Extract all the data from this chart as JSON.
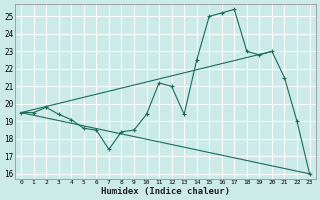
{
  "xlabel": "Humidex (Indice chaleur)",
  "bg_color": "#cceae8",
  "grid_color": "#ffffff",
  "line_color": "#1a6b5a",
  "xlim": [
    -0.5,
    23.5
  ],
  "ylim": [
    15.7,
    25.7
  ],
  "xticks": [
    0,
    1,
    2,
    3,
    4,
    5,
    6,
    7,
    8,
    9,
    10,
    11,
    12,
    13,
    14,
    15,
    16,
    17,
    18,
    19,
    20,
    21,
    22,
    23
  ],
  "yticks": [
    16,
    17,
    18,
    19,
    20,
    21,
    22,
    23,
    24,
    25
  ],
  "main_x": [
    0,
    1,
    2,
    3,
    4,
    5,
    6,
    7,
    8,
    9,
    10,
    11,
    12,
    13,
    14,
    15,
    16,
    17,
    18,
    19,
    20,
    21,
    22,
    23
  ],
  "main_y": [
    19.5,
    19.5,
    19.8,
    19.4,
    19.1,
    18.6,
    18.5,
    17.4,
    18.4,
    18.5,
    19.4,
    21.2,
    21.0,
    19.4,
    22.5,
    25.0,
    25.2,
    25.4,
    23.0,
    22.8,
    23.0,
    21.5,
    19.0,
    16.0
  ],
  "trend1_x": [
    0,
    23
  ],
  "trend1_y": [
    19.5,
    16.0
  ],
  "trend2_x": [
    0,
    20
  ],
  "trend2_y": [
    19.5,
    23.0
  ]
}
